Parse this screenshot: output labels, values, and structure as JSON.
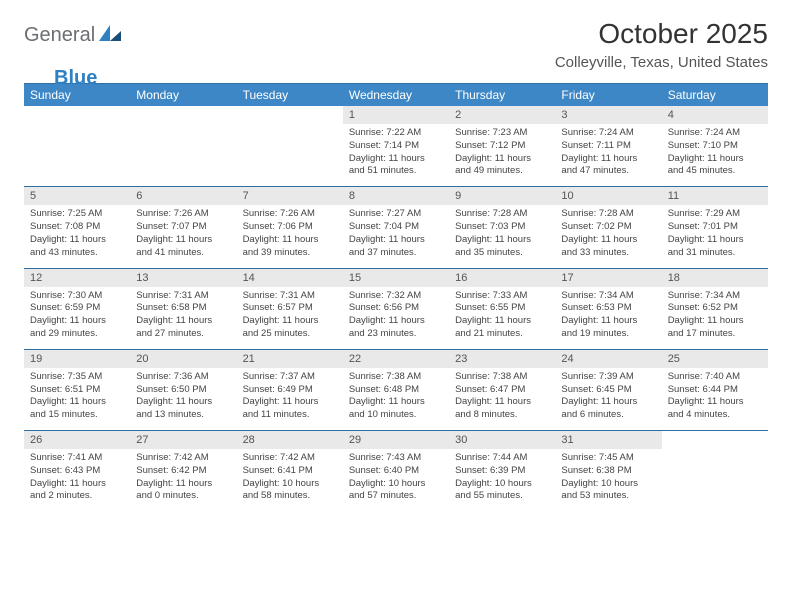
{
  "logo": {
    "text1": "General",
    "text2": "Blue"
  },
  "title": "October 2025",
  "location": "Colleyville, Texas, United States",
  "colors": {
    "header_bg": "#3d87c6",
    "header_text": "#ffffff",
    "daynum_bg": "#e9e9e9",
    "rule": "#2f6fa6",
    "logo_gray": "#6a6f73",
    "logo_blue": "#2f80c2",
    "body_text": "#444444",
    "background": "#ffffff"
  },
  "typography": {
    "title_fontsize": 28,
    "location_fontsize": 15,
    "dayheader_fontsize": 12,
    "daynum_fontsize": 11,
    "detail_fontsize": 9.5
  },
  "layout": {
    "columns": 7,
    "rows": 5
  },
  "day_headers": [
    "Sunday",
    "Monday",
    "Tuesday",
    "Wednesday",
    "Thursday",
    "Friday",
    "Saturday"
  ],
  "weeks": [
    [
      null,
      null,
      null,
      {
        "n": "1",
        "sunrise": "Sunrise: 7:22 AM",
        "sunset": "Sunset: 7:14 PM",
        "daylight": "Daylight: 11 hours and 51 minutes."
      },
      {
        "n": "2",
        "sunrise": "Sunrise: 7:23 AM",
        "sunset": "Sunset: 7:12 PM",
        "daylight": "Daylight: 11 hours and 49 minutes."
      },
      {
        "n": "3",
        "sunrise": "Sunrise: 7:24 AM",
        "sunset": "Sunset: 7:11 PM",
        "daylight": "Daylight: 11 hours and 47 minutes."
      },
      {
        "n": "4",
        "sunrise": "Sunrise: 7:24 AM",
        "sunset": "Sunset: 7:10 PM",
        "daylight": "Daylight: 11 hours and 45 minutes."
      }
    ],
    [
      {
        "n": "5",
        "sunrise": "Sunrise: 7:25 AM",
        "sunset": "Sunset: 7:08 PM",
        "daylight": "Daylight: 11 hours and 43 minutes."
      },
      {
        "n": "6",
        "sunrise": "Sunrise: 7:26 AM",
        "sunset": "Sunset: 7:07 PM",
        "daylight": "Daylight: 11 hours and 41 minutes."
      },
      {
        "n": "7",
        "sunrise": "Sunrise: 7:26 AM",
        "sunset": "Sunset: 7:06 PM",
        "daylight": "Daylight: 11 hours and 39 minutes."
      },
      {
        "n": "8",
        "sunrise": "Sunrise: 7:27 AM",
        "sunset": "Sunset: 7:04 PM",
        "daylight": "Daylight: 11 hours and 37 minutes."
      },
      {
        "n": "9",
        "sunrise": "Sunrise: 7:28 AM",
        "sunset": "Sunset: 7:03 PM",
        "daylight": "Daylight: 11 hours and 35 minutes."
      },
      {
        "n": "10",
        "sunrise": "Sunrise: 7:28 AM",
        "sunset": "Sunset: 7:02 PM",
        "daylight": "Daylight: 11 hours and 33 minutes."
      },
      {
        "n": "11",
        "sunrise": "Sunrise: 7:29 AM",
        "sunset": "Sunset: 7:01 PM",
        "daylight": "Daylight: 11 hours and 31 minutes."
      }
    ],
    [
      {
        "n": "12",
        "sunrise": "Sunrise: 7:30 AM",
        "sunset": "Sunset: 6:59 PM",
        "daylight": "Daylight: 11 hours and 29 minutes."
      },
      {
        "n": "13",
        "sunrise": "Sunrise: 7:31 AM",
        "sunset": "Sunset: 6:58 PM",
        "daylight": "Daylight: 11 hours and 27 minutes."
      },
      {
        "n": "14",
        "sunrise": "Sunrise: 7:31 AM",
        "sunset": "Sunset: 6:57 PM",
        "daylight": "Daylight: 11 hours and 25 minutes."
      },
      {
        "n": "15",
        "sunrise": "Sunrise: 7:32 AM",
        "sunset": "Sunset: 6:56 PM",
        "daylight": "Daylight: 11 hours and 23 minutes."
      },
      {
        "n": "16",
        "sunrise": "Sunrise: 7:33 AM",
        "sunset": "Sunset: 6:55 PM",
        "daylight": "Daylight: 11 hours and 21 minutes."
      },
      {
        "n": "17",
        "sunrise": "Sunrise: 7:34 AM",
        "sunset": "Sunset: 6:53 PM",
        "daylight": "Daylight: 11 hours and 19 minutes."
      },
      {
        "n": "18",
        "sunrise": "Sunrise: 7:34 AM",
        "sunset": "Sunset: 6:52 PM",
        "daylight": "Daylight: 11 hours and 17 minutes."
      }
    ],
    [
      {
        "n": "19",
        "sunrise": "Sunrise: 7:35 AM",
        "sunset": "Sunset: 6:51 PM",
        "daylight": "Daylight: 11 hours and 15 minutes."
      },
      {
        "n": "20",
        "sunrise": "Sunrise: 7:36 AM",
        "sunset": "Sunset: 6:50 PM",
        "daylight": "Daylight: 11 hours and 13 minutes."
      },
      {
        "n": "21",
        "sunrise": "Sunrise: 7:37 AM",
        "sunset": "Sunset: 6:49 PM",
        "daylight": "Daylight: 11 hours and 11 minutes."
      },
      {
        "n": "22",
        "sunrise": "Sunrise: 7:38 AM",
        "sunset": "Sunset: 6:48 PM",
        "daylight": "Daylight: 11 hours and 10 minutes."
      },
      {
        "n": "23",
        "sunrise": "Sunrise: 7:38 AM",
        "sunset": "Sunset: 6:47 PM",
        "daylight": "Daylight: 11 hours and 8 minutes."
      },
      {
        "n": "24",
        "sunrise": "Sunrise: 7:39 AM",
        "sunset": "Sunset: 6:45 PM",
        "daylight": "Daylight: 11 hours and 6 minutes."
      },
      {
        "n": "25",
        "sunrise": "Sunrise: 7:40 AM",
        "sunset": "Sunset: 6:44 PM",
        "daylight": "Daylight: 11 hours and 4 minutes."
      }
    ],
    [
      {
        "n": "26",
        "sunrise": "Sunrise: 7:41 AM",
        "sunset": "Sunset: 6:43 PM",
        "daylight": "Daylight: 11 hours and 2 minutes."
      },
      {
        "n": "27",
        "sunrise": "Sunrise: 7:42 AM",
        "sunset": "Sunset: 6:42 PM",
        "daylight": "Daylight: 11 hours and 0 minutes."
      },
      {
        "n": "28",
        "sunrise": "Sunrise: 7:42 AM",
        "sunset": "Sunset: 6:41 PM",
        "daylight": "Daylight: 10 hours and 58 minutes."
      },
      {
        "n": "29",
        "sunrise": "Sunrise: 7:43 AM",
        "sunset": "Sunset: 6:40 PM",
        "daylight": "Daylight: 10 hours and 57 minutes."
      },
      {
        "n": "30",
        "sunrise": "Sunrise: 7:44 AM",
        "sunset": "Sunset: 6:39 PM",
        "daylight": "Daylight: 10 hours and 55 minutes."
      },
      {
        "n": "31",
        "sunrise": "Sunrise: 7:45 AM",
        "sunset": "Sunset: 6:38 PM",
        "daylight": "Daylight: 10 hours and 53 minutes."
      },
      null
    ]
  ]
}
